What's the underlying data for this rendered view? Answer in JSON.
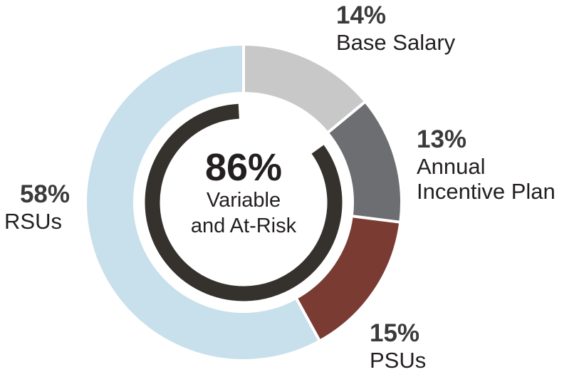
{
  "chart_data": {
    "type": "pie",
    "variant": "donut",
    "slices": [
      {
        "label": "Base Salary",
        "label_lines": [
          "Base Salary"
        ],
        "value": 14,
        "value_label": "14%",
        "color": "#c8c8c8"
      },
      {
        "label": "Annual Incentive Plan",
        "label_lines": [
          "Annual",
          "Incentive Plan"
        ],
        "value": 13,
        "value_label": "13%",
        "color": "#6d6e71"
      },
      {
        "label": "PSUs",
        "label_lines": [
          "PSUs"
        ],
        "value": 15,
        "value_label": "15%",
        "color": "#7a3b33"
      },
      {
        "label": "RSUs",
        "label_lines": [
          "RSUs"
        ],
        "value": 58,
        "value_label": "58%",
        "color": "#c8e0eb"
      }
    ],
    "center": {
      "value": "86%",
      "line1": "Variable",
      "line2": "and At-Risk"
    },
    "inner_arc": {
      "represents": "Variable and At-Risk",
      "value": 86,
      "color": "#35312d"
    }
  }
}
